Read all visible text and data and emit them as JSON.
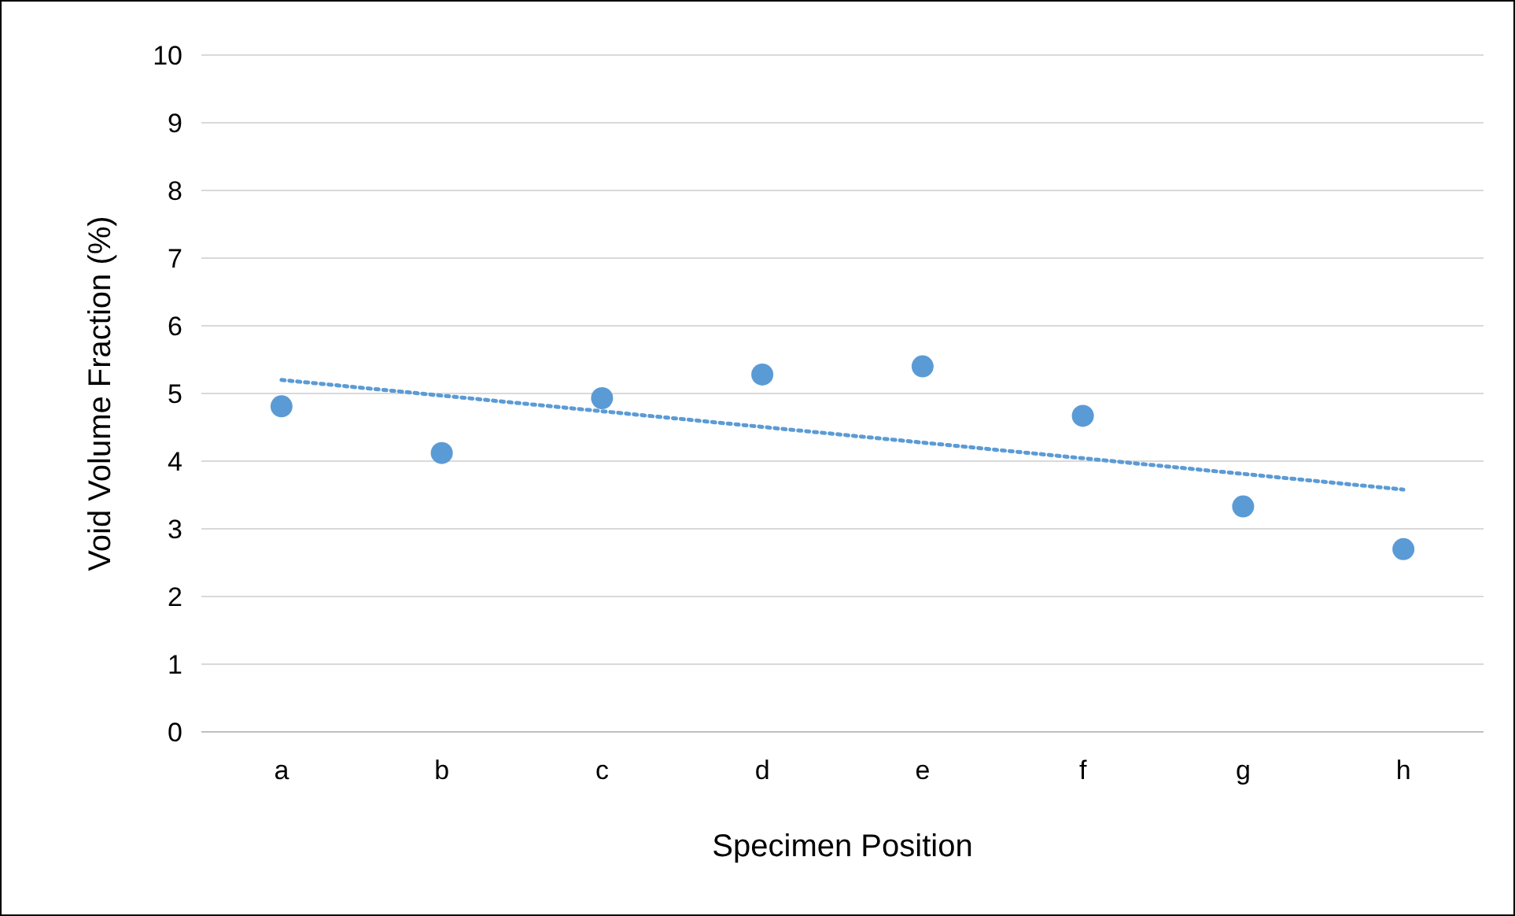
{
  "chart_data": {
    "type": "scatter",
    "xlabel": "Specimen Position",
    "ylabel": "Void Volume Fraction (%)",
    "categories": [
      "a",
      "b",
      "c",
      "d",
      "e",
      "f",
      "g",
      "h"
    ],
    "ylim": [
      0,
      10
    ],
    "yticks": [
      0,
      1,
      2,
      3,
      4,
      5,
      6,
      7,
      8,
      9,
      10
    ],
    "grid": "y",
    "marker": "circle",
    "series": [
      {
        "color": "#5b9bd5",
        "values": [
          4.81,
          4.12,
          4.93,
          5.28,
          5.4,
          4.67,
          3.33,
          2.7
        ]
      },
      {
        "type": "line",
        "color": "#5b9bd5",
        "line_style": "dotted",
        "marker": "none",
        "x": [
          "a",
          "h"
        ],
        "values": [
          5.2,
          3.58
        ]
      }
    ]
  }
}
